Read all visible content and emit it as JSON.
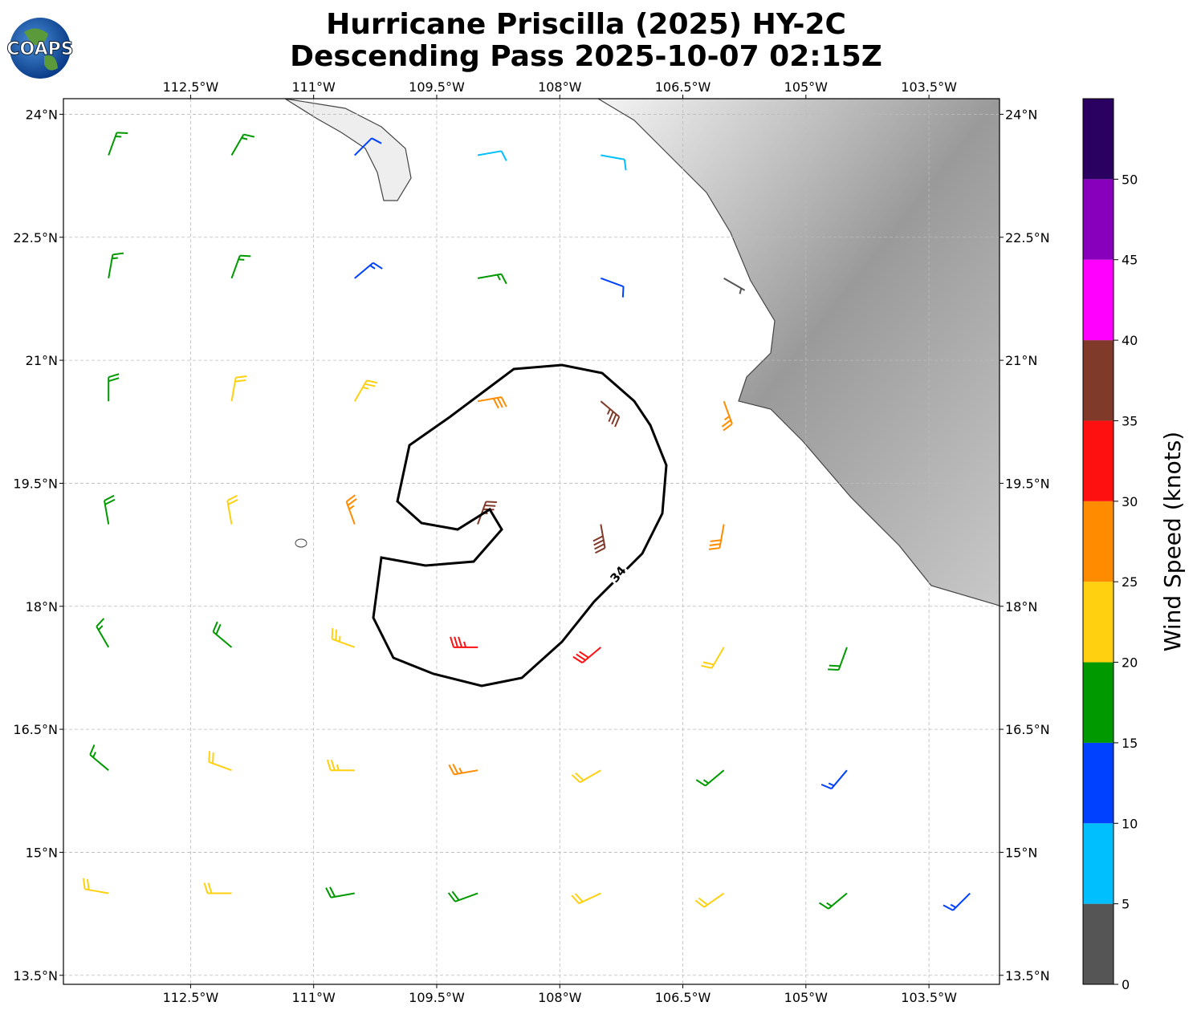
{
  "chart_data": {
    "type": "barbs",
    "title_lines": [
      "Hurricane Priscilla (2025) HY-2C",
      "Descending Pass 2025-10-07 02:15Z"
    ],
    "logo_text": "COAPS",
    "xlim": [
      -114.05,
      -102.64
    ],
    "ylim": [
      13.39,
      24.19
    ],
    "xticks": [
      {
        "value": -112.5,
        "label": "112.5°W"
      },
      {
        "value": -111,
        "label": "111°W"
      },
      {
        "value": -109.5,
        "label": "109.5°W"
      },
      {
        "value": -108,
        "label": "108°W"
      },
      {
        "value": -106.5,
        "label": "106.5°W"
      },
      {
        "value": -105,
        "label": "105°W"
      },
      {
        "value": -103.5,
        "label": "103.5°W"
      }
    ],
    "yticks": [
      {
        "value": 13.5,
        "label": "13.5°N"
      },
      {
        "value": 15,
        "label": "15°N"
      },
      {
        "value": 16.5,
        "label": "16.5°N"
      },
      {
        "value": 18,
        "label": "18°N"
      },
      {
        "value": 19.5,
        "label": "19.5°N"
      },
      {
        "value": 21,
        "label": "21°N"
      },
      {
        "value": 22.5,
        "label": "22.5°N"
      },
      {
        "value": 24,
        "label": "24°N"
      }
    ],
    "grid": true,
    "colorbar": {
      "label": "Wind Speed (knots)",
      "levels": [
        0,
        5,
        10,
        15,
        20,
        25,
        30,
        35,
        40,
        45,
        50,
        55
      ],
      "colors": [
        "#555555",
        "#00bfff",
        "#0040ff",
        "#009900",
        "#ffd010",
        "#ff8c00",
        "#ff1010",
        "#7f3a2a",
        "#ff00ff",
        "#8800bb",
        "#2a0060"
      ],
      "ticks": [
        0,
        5,
        10,
        15,
        20,
        25,
        30,
        35,
        40,
        45,
        50
      ]
    },
    "contour": {
      "value": 34
    },
    "barbs": {
      "lon": [
        -113.5,
        -112,
        -110.5,
        -109,
        -107.5,
        -113.5,
        -112,
        -110.5,
        -109,
        -107.5,
        -106,
        -113.5,
        -112,
        -110.5,
        -109,
        -107.5,
        -106,
        -113.5,
        -112,
        -110.5,
        -109,
        -107.5,
        -106,
        -113.5,
        -112,
        -110.5,
        -109,
        -107.5,
        -106,
        -104.5,
        -113.5,
        -112,
        -110.5,
        -109,
        -107.5,
        -106,
        -104.5,
        -113.5,
        -112,
        -110.5,
        -109,
        -107.5,
        -106,
        -104.5,
        -103
      ],
      "lat": [
        23.5,
        23.5,
        23.5,
        23.5,
        23.5,
        22,
        22,
        22,
        22,
        22,
        22,
        20.5,
        20.5,
        20.5,
        20.5,
        20.5,
        20.5,
        19,
        19,
        19,
        19,
        19,
        19,
        17.5,
        17.5,
        17.5,
        17.5,
        17.5,
        17.5,
        17.5,
        16,
        16,
        16,
        16,
        16,
        16,
        16,
        14.5,
        14.5,
        14.5,
        14.5,
        14.5,
        14.5,
        14.5,
        14.5
      ],
      "speed": [
        17,
        17,
        12,
        8,
        8,
        17,
        17,
        13,
        16,
        12,
        3,
        18,
        22,
        23,
        28,
        37,
        27,
        18,
        22,
        27,
        36,
        38,
        28,
        17,
        18,
        23,
        33,
        32,
        22,
        18,
        16,
        22,
        23,
        27,
        22,
        17,
        13,
        21,
        22,
        18,
        18,
        22,
        22,
        17,
        13
      ],
      "direction": [
        20,
        30,
        45,
        80,
        100,
        10,
        20,
        50,
        80,
        110,
        120,
        0,
        10,
        30,
        80,
        130,
        160,
        350,
        350,
        340,
        20,
        170,
        190,
        330,
        310,
        290,
        270,
        230,
        210,
        200,
        310,
        290,
        270,
        260,
        240,
        230,
        220,
        280,
        270,
        260,
        250,
        245,
        235,
        230,
        225
      ]
    }
  }
}
